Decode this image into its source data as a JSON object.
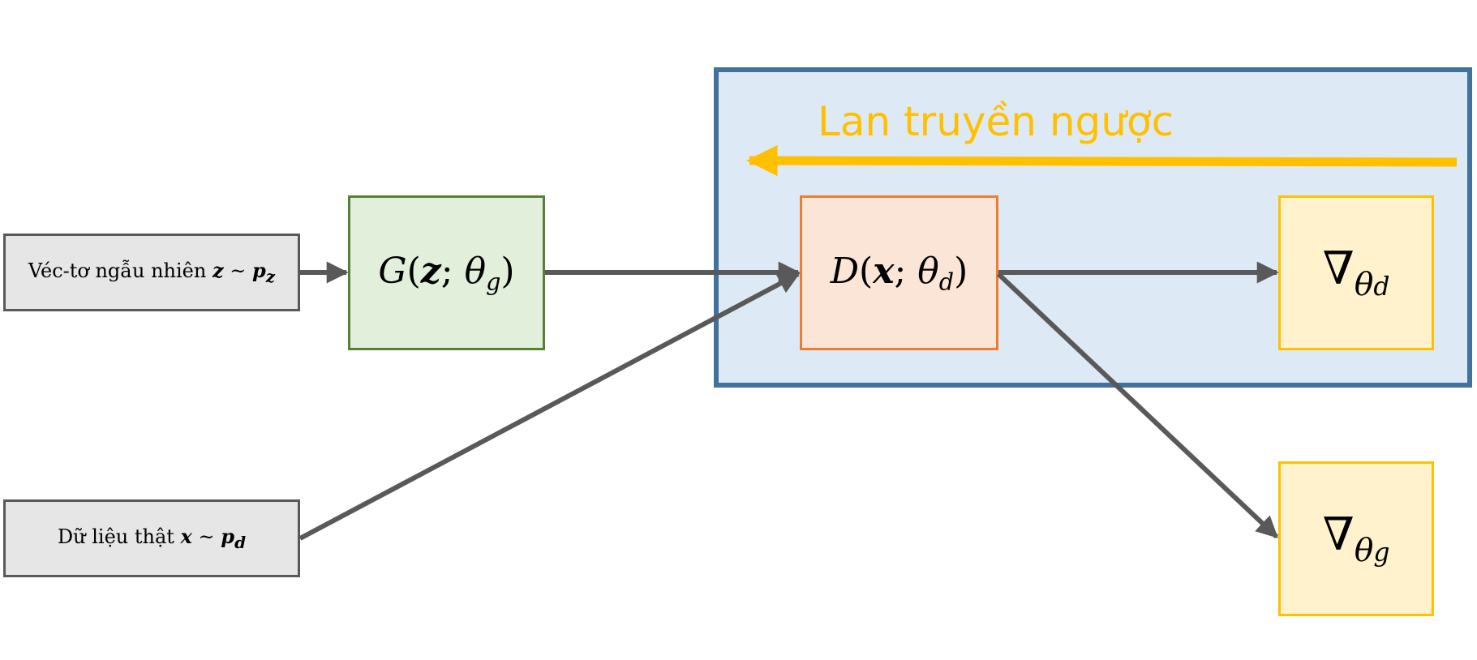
{
  "nodes": {
    "noise": {
      "prefix": "Véc-tơ ngẫu nhiên",
      "var": "z",
      "tilde": "~",
      "dist": "p",
      "dist_sub": "z"
    },
    "real": {
      "prefix": "Dữ liệu thật",
      "var": "x",
      "tilde": "~",
      "dist": "p",
      "dist_sub": "d"
    },
    "generator": {
      "fn": "G",
      "open": "(",
      "var": "z",
      "sep": ";",
      "theta": "θ",
      "theta_sub": "g",
      "close": ")"
    },
    "discriminator": {
      "fn": "D",
      "open": "(",
      "var": "x",
      "sep": ";",
      "theta": "θ",
      "theta_sub": "d",
      "close": ")"
    },
    "grad_d": {
      "nabla": "∇",
      "theta": "θ",
      "theta_sub": "d"
    },
    "grad_g": {
      "nabla": "∇",
      "theta": "θ",
      "theta_sub": "g"
    }
  },
  "backprop": {
    "label": "Lan truyền ngược"
  },
  "colors": {
    "arrow": "#595959",
    "backprop": "#ffc000",
    "region_fill": "#dee9f6",
    "region_border": "#41719c",
    "generator_fill": "#e2efda",
    "generator_border": "#538135",
    "discriminator_fill": "#fbe5d6",
    "discriminator_border": "#ed7d31",
    "gradient_fill": "#fff2cc",
    "gradient_border": "#ffc000",
    "input_fill": "#e7e6e6",
    "input_border": "#595959"
  }
}
